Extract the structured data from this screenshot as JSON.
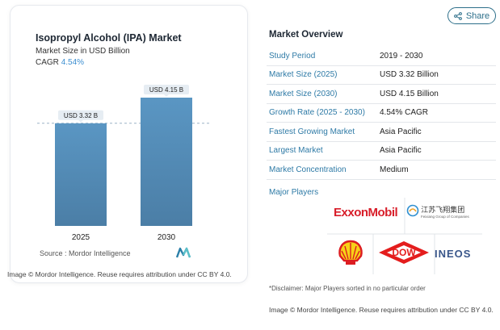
{
  "chart": {
    "title": "Isopropyl Alcohol (IPA) Market",
    "subtitle": "Market Size in USD Billion",
    "cagr_label": "CAGR",
    "cagr_value": "4.54%",
    "source": "Source :  Mordor Intelligence",
    "credit": "Image © Mordor Intelligence. Reuse requires attribution under CC BY 4.0."
  },
  "chart_data": {
    "type": "bar",
    "categories": [
      "2025",
      "2030"
    ],
    "values": [
      3.32,
      4.15
    ],
    "data_labels": [
      "USD 3.32 B",
      "USD 4.15 B"
    ],
    "title": "Isopropyl Alcohol (IPA) Market",
    "ylabel": "",
    "xlabel": "",
    "ylim": [
      0,
      4.15
    ],
    "reference_line_value": 3.32,
    "colors": {
      "bar_top": "#5a96c3",
      "bar_bottom": "#4b7ea6",
      "label_bg": "#e6edf3"
    },
    "grid": false
  },
  "share": {
    "label": "Share",
    "color": "#2d6f8a"
  },
  "overview": {
    "title": "Market Overview",
    "rows": [
      {
        "key": "Study Period",
        "value": "2019 - 2030"
      },
      {
        "key": "Market Size (2025)",
        "value": "USD 3.32 Billion"
      },
      {
        "key": "Market Size (2030)",
        "value": "USD 4.15 Billion"
      },
      {
        "key": "Growth Rate (2025 - 2030)",
        "value": "4.54% CAGR"
      },
      {
        "key": "Fastest Growing Market",
        "value": "Asia Pacific"
      },
      {
        "key": "Largest Market",
        "value": "Asia Pacific"
      },
      {
        "key": "Market Concentration",
        "value": "Medium"
      }
    ],
    "players_label": "Major Players",
    "players": {
      "exxon": "ExxonMobil",
      "jiangsu": "江苏飞翔集团",
      "jiangsu_sub": "Feixiang Group of Companies",
      "shell": "shell-logo",
      "dow": "DOW",
      "ineos": "INEOS"
    },
    "disclaimer": "*Disclaimer: Major Players sorted in no particular order",
    "credit": "Image © Mordor Intelligence. Reuse requires attribution under CC BY 4.0."
  }
}
